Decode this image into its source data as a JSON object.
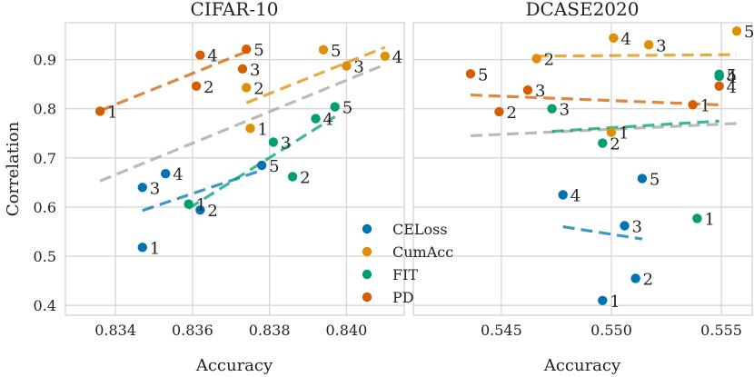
{
  "chart_data": {
    "type": "scatter",
    "ylabel": "Correlation",
    "series_colors": {
      "CELoss": "#0173b2",
      "CumAcc": "#de8f05",
      "FIT": "#029e73",
      "PD": "#d55e00",
      "overall": "#aaaaaa"
    },
    "legend": {
      "placement": "lower-right of left panel",
      "entries": [
        "CELoss",
        "CumAcc",
        "FIT",
        "PD"
      ]
    },
    "panels": [
      {
        "title": "CIFAR-10",
        "xlabel": "Accuracy",
        "xlim": [
          0.8327,
          0.8415
        ],
        "ylim": [
          0.38,
          0.975
        ],
        "xticks": [
          0.834,
          0.836,
          0.838,
          0.84
        ],
        "xtick_labels": [
          "0.834",
          "0.836",
          "0.838",
          "0.840"
        ],
        "yticks": [
          0.4,
          0.5,
          0.6,
          0.7,
          0.8,
          0.9
        ],
        "ytick_labels": [
          "0.4",
          "0.5",
          "0.6",
          "0.7",
          "0.8",
          "0.9"
        ],
        "series": [
          {
            "name": "CELoss",
            "points": [
              {
                "label": "1",
                "x": 0.8347,
                "y": 0.518
              },
              {
                "label": "2",
                "x": 0.8362,
                "y": 0.594
              },
              {
                "label": "3",
                "x": 0.8347,
                "y": 0.64
              },
              {
                "label": "4",
                "x": 0.8353,
                "y": 0.668
              },
              {
                "label": "5",
                "x": 0.8378,
                "y": 0.685
              }
            ],
            "fit": [
              [
                0.8347,
                0.593
              ],
              [
                0.8378,
                0.675
              ]
            ]
          },
          {
            "name": "CumAcc",
            "points": [
              {
                "label": "1",
                "x": 0.8375,
                "y": 0.76
              },
              {
                "label": "2",
                "x": 0.8374,
                "y": 0.843
              },
              {
                "label": "3",
                "x": 0.84,
                "y": 0.887
              },
              {
                "label": "4",
                "x": 0.841,
                "y": 0.907
              },
              {
                "label": "5",
                "x": 0.8394,
                "y": 0.92
              }
            ],
            "fit": [
              [
                0.8374,
                0.812
              ],
              [
                0.841,
                0.925
              ]
            ]
          },
          {
            "name": "FIT",
            "points": [
              {
                "label": "1",
                "x": 0.8359,
                "y": 0.606
              },
              {
                "label": "2",
                "x": 0.8386,
                "y": 0.662
              },
              {
                "label": "3",
                "x": 0.8381,
                "y": 0.732
              },
              {
                "label": "4",
                "x": 0.8392,
                "y": 0.78
              },
              {
                "label": "5",
                "x": 0.8397,
                "y": 0.804
              }
            ],
            "fit": [
              [
                0.8359,
                0.597
              ],
              [
                0.8397,
                0.784
              ]
            ]
          },
          {
            "name": "PD",
            "points": [
              {
                "label": "1",
                "x": 0.8336,
                "y": 0.795
              },
              {
                "label": "2",
                "x": 0.8361,
                "y": 0.846
              },
              {
                "label": "3",
                "x": 0.8373,
                "y": 0.881
              },
              {
                "label": "4",
                "x": 0.8362,
                "y": 0.909
              },
              {
                "label": "5",
                "x": 0.8374,
                "y": 0.921
              }
            ],
            "fit": [
              [
                0.8336,
                0.796
              ],
              [
                0.8374,
                0.916
              ]
            ]
          }
        ],
        "overall_fit": [
          [
            0.8336,
            0.653
          ],
          [
            0.841,
            0.89
          ]
        ]
      },
      {
        "title": "DCASE2020",
        "xlabel": "Accuracy",
        "xlim": [
          0.541,
          0.5564
        ],
        "ylim": [
          0.38,
          0.975
        ],
        "xticks": [
          0.545,
          0.55,
          0.555
        ],
        "xtick_labels": [
          "0.545",
          "0.550",
          "0.555"
        ],
        "yticks": [
          0.4,
          0.5,
          0.6,
          0.7,
          0.8,
          0.9
        ],
        "series": [
          {
            "name": "CELoss",
            "points": [
              {
                "label": "1",
                "x": 0.5496,
                "y": 0.41
              },
              {
                "label": "2",
                "x": 0.5511,
                "y": 0.455
              },
              {
                "label": "3",
                "x": 0.5506,
                "y": 0.562
              },
              {
                "label": "4",
                "x": 0.5478,
                "y": 0.625
              },
              {
                "label": "5",
                "x": 0.5514,
                "y": 0.658
              }
            ],
            "fit": [
              [
                0.5478,
                0.56
              ],
              [
                0.5514,
                0.535
              ]
            ]
          },
          {
            "name": "CumAcc",
            "points": [
              {
                "label": "1",
                "x": 0.55,
                "y": 0.752
              },
              {
                "label": "2",
                "x": 0.5466,
                "y": 0.902
              },
              {
                "label": "3",
                "x": 0.5517,
                "y": 0.93
              },
              {
                "label": "4",
                "x": 0.5501,
                "y": 0.944
              },
              {
                "label": "5",
                "x": 0.5557,
                "y": 0.958
              }
            ],
            "fit": [
              [
                0.5466,
                0.907
              ],
              [
                0.5557,
                0.91
              ]
            ]
          },
          {
            "name": "FIT",
            "points": [
              {
                "label": "1",
                "x": 0.5539,
                "y": 0.577
              },
              {
                "label": "2",
                "x": 0.5496,
                "y": 0.73
              },
              {
                "label": "3",
                "x": 0.5473,
                "y": 0.8
              },
              {
                "label": "4",
                "x": 0.5549,
                "y": 0.866
              },
              {
                "label": "5",
                "x": 0.5549,
                "y": 0.87
              }
            ],
            "fit": [
              [
                0.5473,
                0.754
              ],
              [
                0.5549,
                0.775
              ]
            ]
          },
          {
            "name": "PD",
            "points": [
              {
                "label": "1",
                "x": 0.5537,
                "y": 0.808
              },
              {
                "label": "2",
                "x": 0.5449,
                "y": 0.794
              },
              {
                "label": "3",
                "x": 0.5462,
                "y": 0.838
              },
              {
                "label": "4",
                "x": 0.5549,
                "y": 0.846
              },
              {
                "label": "5",
                "x": 0.5436,
                "y": 0.871
              }
            ],
            "fit": [
              [
                0.5436,
                0.828
              ],
              [
                0.5549,
                0.808
              ]
            ]
          }
        ],
        "overall_fit": [
          [
            0.5436,
            0.745
          ],
          [
            0.5557,
            0.77
          ]
        ]
      }
    ]
  }
}
